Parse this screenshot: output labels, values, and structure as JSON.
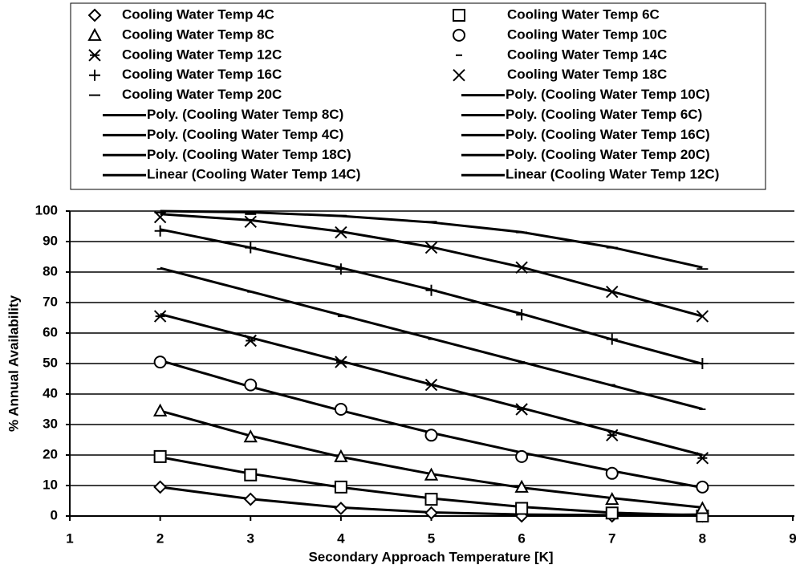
{
  "chart_data": {
    "type": "scatter",
    "x_label": "Secondary Approach Temperature [K]",
    "y_label": "% Annual Availability",
    "xlim": [
      1,
      9
    ],
    "xticks": [
      1,
      2,
      3,
      4,
      5,
      6,
      7,
      8,
      9
    ],
    "ylim": [
      0,
      100
    ],
    "yticks": [
      0,
      10,
      20,
      30,
      40,
      50,
      60,
      70,
      80,
      90,
      100
    ],
    "grid": true,
    "x": [
      2,
      3,
      4,
      5,
      6,
      7,
      8
    ],
    "series": [
      {
        "name": "Cooling Water Temp 4C",
        "marker": "diamond",
        "color": "#000000",
        "values": [
          9.5,
          5.5,
          2.5,
          1,
          0,
          0,
          0
        ]
      },
      {
        "name": "Cooling Water Temp 6C",
        "marker": "square",
        "color": "#000000",
        "values": [
          19.5,
          13.5,
          9.5,
          5.5,
          2.5,
          1,
          0
        ]
      },
      {
        "name": "Cooling Water Temp 8C",
        "marker": "triangle",
        "color": "#000000",
        "values": [
          34.5,
          26,
          19.5,
          13.5,
          9.5,
          5.5,
          2.5
        ]
      },
      {
        "name": "Cooling Water Temp 10C",
        "marker": "circle",
        "color": "#000000",
        "values": [
          50.5,
          43,
          35,
          26.5,
          19.5,
          14,
          9.5
        ]
      },
      {
        "name": "Cooling Water Temp 12C",
        "marker": "asterisk",
        "color": "#000000",
        "values": [
          65.5,
          57.5,
          50.5,
          43,
          35,
          26.5,
          19
        ]
      },
      {
        "name": "Cooling Water Temp 14C",
        "marker": "dash",
        "color": "#000000",
        "values": [
          81,
          73.5,
          65.5,
          58,
          50.5,
          43,
          35
        ]
      },
      {
        "name": "Cooling Water Temp 16C",
        "marker": "plus",
        "color": "#000000",
        "values": [
          93.5,
          88,
          81,
          74,
          66,
          58,
          50
        ]
      },
      {
        "name": "Cooling Water Temp 18C",
        "marker": "x",
        "color": "#000000",
        "values": [
          98,
          96.5,
          93,
          88,
          81.5,
          73.5,
          65.5
        ]
      },
      {
        "name": "Cooling Water Temp 20C",
        "marker": "bar",
        "color": "#000000",
        "values": [
          99.5,
          99,
          98.5,
          96.5,
          93,
          88,
          81
        ]
      }
    ],
    "trendlines": [
      {
        "name": "Poly. (Cooling Water Temp 10C)",
        "color": "#000000",
        "values": [
          51,
          42.4,
          34.6,
          27.3,
          20.8,
          14.8,
          9.3
        ]
      },
      {
        "name": "Poly. (Cooling Water Temp 8C)",
        "color": "#000000",
        "values": [
          34.5,
          26.3,
          19.4,
          13.8,
          9.3,
          5.9,
          2.8
        ]
      },
      {
        "name": "Poly. (Cooling Water Temp 6C)",
        "color": "#000000",
        "values": [
          19.3,
          13.9,
          9.4,
          5.8,
          3.0,
          1.1,
          0.2
        ]
      },
      {
        "name": "Poly. (Cooling Water Temp 4C)",
        "color": "#000000",
        "values": [
          9.5,
          5.6,
          2.8,
          1.2,
          0.5,
          0.3,
          0.5
        ]
      },
      {
        "name": "Poly. (Cooling Water Temp 16C)",
        "color": "#000000",
        "values": [
          94,
          88,
          81.4,
          74.2,
          66.3,
          57.9,
          49.9
        ]
      },
      {
        "name": "Poly. (Cooling Water Temp 18C)",
        "color": "#000000",
        "values": [
          99,
          97,
          93.3,
          88.2,
          81.6,
          73.6,
          65.5
        ]
      },
      {
        "name": "Poly. (Cooling Water Temp 20C)",
        "color": "#000000",
        "values": [
          100,
          99.6,
          98.4,
          96.3,
          93.1,
          88.1,
          81.5
        ]
      },
      {
        "name": "Linear (Cooling Water Temp 14C)",
        "color": "#000000",
        "values": [
          81.3,
          73.6,
          65.9,
          58.2,
          50.5,
          42.8,
          35.1
        ]
      },
      {
        "name": "Linear (Cooling Water Temp 12C)",
        "color": "#000000",
        "values": [
          66.2,
          58.5,
          50.8,
          43.1,
          35.4,
          27.7,
          20
        ]
      }
    ]
  }
}
